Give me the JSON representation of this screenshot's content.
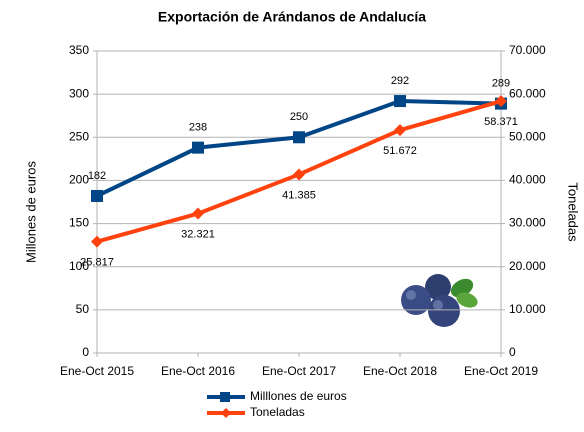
{
  "chart_data": {
    "type": "line",
    "title": "Exportación de Arándanos de Andalucía",
    "y_label": "Millones de euros",
    "y2_label": "Toneladas",
    "categories": [
      "Ene-Oct 2015",
      "Ene-Oct 2016",
      "Ene-Oct 2017",
      "Ene-Oct 2018",
      "Ene-Oct 2019"
    ],
    "ylim": [
      0,
      350
    ],
    "yticks": [
      0,
      50,
      100,
      150,
      200,
      250,
      300,
      350
    ],
    "y2lim": [
      0,
      70000
    ],
    "y2ticks": [
      0,
      {
        "value": 10000,
        "label": "10.000"
      },
      {
        "value": 20000,
        "label": "20.000"
      },
      {
        "value": 30000,
        "label": "30.000"
      },
      {
        "value": 40000,
        "label": "40.000"
      },
      {
        "value": 50000,
        "label": "50.000"
      },
      {
        "value": 60000,
        "label": "60.000"
      },
      {
        "value": 70000,
        "label": "70.000"
      }
    ],
    "grid": true,
    "legend": "bottom",
    "series": [
      {
        "name": "Milllones de euros",
        "color": "#004586",
        "marker": "square",
        "values": [
          182,
          238,
          250,
          292,
          289
        ]
      },
      {
        "name": "Toneladas",
        "color": "#ff420e",
        "marker": "diamond",
        "axis": "y2",
        "values": [
          25817,
          32321,
          41385,
          51672,
          58371
        ],
        "value_labels": [
          "25.817",
          "32.321",
          "41.385",
          "51.672",
          "58.371"
        ]
      }
    ]
  }
}
